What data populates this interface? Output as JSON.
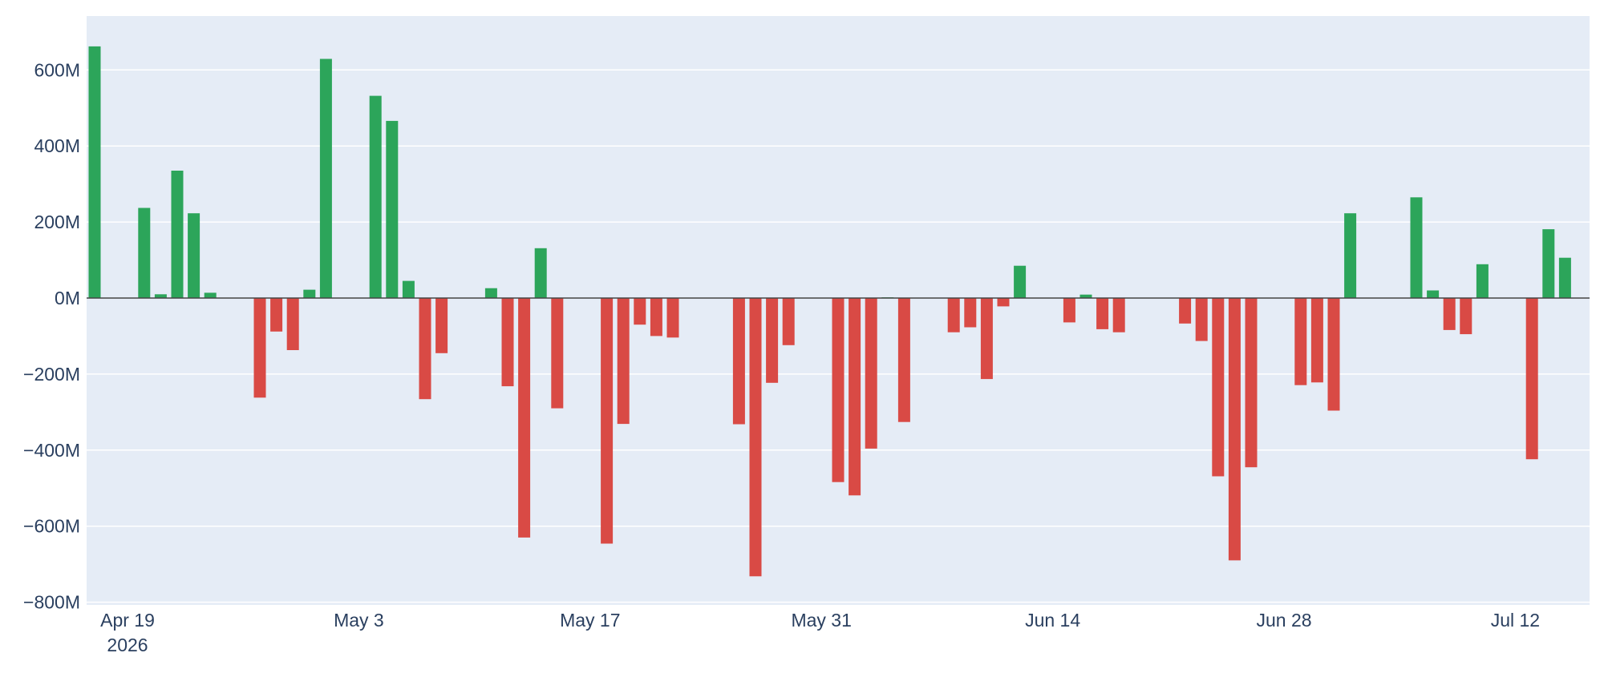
{
  "chart_data": {
    "type": "bar",
    "title": "",
    "xlabel": "",
    "ylabel": "",
    "ylim": [
      -800,
      730
    ],
    "y_unit_suffix": "M",
    "grid": true,
    "legend": "none",
    "colors": {
      "positive": "#2ca55a",
      "negative": "#d94a45",
      "plot_background": "#e5ecf6",
      "grid": "#ffffff",
      "zero_line": "#444444",
      "text": "#2a3f5f"
    },
    "x_ticks": [
      {
        "date": "2026-04-19",
        "label": "Apr 19",
        "sublabel": "2026"
      },
      {
        "date": "2026-05-03",
        "label": "May 3"
      },
      {
        "date": "2026-05-17",
        "label": "May 17"
      },
      {
        "date": "2026-05-31",
        "label": "May 31"
      },
      {
        "date": "2026-06-14",
        "label": "Jun 14"
      },
      {
        "date": "2026-06-28",
        "label": "Jun 28"
      },
      {
        "date": "2026-07-12",
        "label": "Jul 12"
      }
    ],
    "y_ticks": [
      {
        "value": 600,
        "label": "600M"
      },
      {
        "value": 400,
        "label": "400M"
      },
      {
        "value": 200,
        "label": "200M"
      },
      {
        "value": 0,
        "label": "0M"
      },
      {
        "value": -200,
        "label": "−200M"
      },
      {
        "value": -400,
        "label": "−400M"
      },
      {
        "value": -600,
        "label": "−600M"
      },
      {
        "value": -800,
        "label": "−800M"
      }
    ],
    "series": [
      {
        "points": [
          {
            "x": "2026-04-19",
            "y": 662
          },
          {
            "x": "2026-04-22",
            "y": 237
          },
          {
            "x": "2026-04-23",
            "y": 10
          },
          {
            "x": "2026-04-24",
            "y": 335
          },
          {
            "x": "2026-04-25",
            "y": 223
          },
          {
            "x": "2026-04-26",
            "y": 14
          },
          {
            "x": "2026-04-29",
            "y": -262
          },
          {
            "x": "2026-04-30",
            "y": -88
          },
          {
            "x": "2026-05-01",
            "y": -137
          },
          {
            "x": "2026-05-02",
            "y": 22
          },
          {
            "x": "2026-05-03",
            "y": 629
          },
          {
            "x": "2026-05-06",
            "y": 532
          },
          {
            "x": "2026-05-07",
            "y": 466
          },
          {
            "x": "2026-05-08",
            "y": 45
          },
          {
            "x": "2026-05-09",
            "y": -266
          },
          {
            "x": "2026-05-10",
            "y": -145
          },
          {
            "x": "2026-05-13",
            "y": 26
          },
          {
            "x": "2026-05-14",
            "y": -232
          },
          {
            "x": "2026-05-15",
            "y": -630
          },
          {
            "x": "2026-05-16",
            "y": 131
          },
          {
            "x": "2026-05-17",
            "y": -290
          },
          {
            "x": "2026-05-20",
            "y": -646
          },
          {
            "x": "2026-05-21",
            "y": -331
          },
          {
            "x": "2026-05-22",
            "y": -70
          },
          {
            "x": "2026-05-23",
            "y": -100
          },
          {
            "x": "2026-05-24",
            "y": -104
          },
          {
            "x": "2026-05-28",
            "y": -332
          },
          {
            "x": "2026-05-29",
            "y": -732
          },
          {
            "x": "2026-05-30",
            "y": -223
          },
          {
            "x": "2026-05-31",
            "y": -124
          },
          {
            "x": "2026-06-03",
            "y": -484
          },
          {
            "x": "2026-06-04",
            "y": -519
          },
          {
            "x": "2026-06-05",
            "y": -396
          },
          {
            "x": "2026-06-06",
            "y": 2
          },
          {
            "x": "2026-06-07",
            "y": -326
          },
          {
            "x": "2026-06-10",
            "y": -90
          },
          {
            "x": "2026-06-11",
            "y": -77
          },
          {
            "x": "2026-06-12",
            "y": -213
          },
          {
            "x": "2026-06-13",
            "y": -22
          },
          {
            "x": "2026-06-14",
            "y": 85
          },
          {
            "x": "2026-06-17",
            "y": -64
          },
          {
            "x": "2026-06-18",
            "y": 9
          },
          {
            "x": "2026-06-19",
            "y": -82
          },
          {
            "x": "2026-06-20",
            "y": -90
          },
          {
            "x": "2026-06-24",
            "y": -67
          },
          {
            "x": "2026-06-25",
            "y": -113
          },
          {
            "x": "2026-06-26",
            "y": -469
          },
          {
            "x": "2026-06-27",
            "y": -690
          },
          {
            "x": "2026-06-28",
            "y": -445
          },
          {
            "x": "2026-07-01",
            "y": -229
          },
          {
            "x": "2026-07-02",
            "y": -222
          },
          {
            "x": "2026-07-03",
            "y": -296
          },
          {
            "x": "2026-07-04",
            "y": 223
          },
          {
            "x": "2026-07-08",
            "y": 265
          },
          {
            "x": "2026-07-09",
            "y": 20
          },
          {
            "x": "2026-07-10",
            "y": -84
          },
          {
            "x": "2026-07-11",
            "y": -95
          },
          {
            "x": "2026-07-12",
            "y": 89
          },
          {
            "x": "2026-07-15",
            "y": -424
          },
          {
            "x": "2026-07-16",
            "y": 181
          },
          {
            "x": "2026-07-17",
            "y": 106
          }
        ]
      }
    ]
  }
}
